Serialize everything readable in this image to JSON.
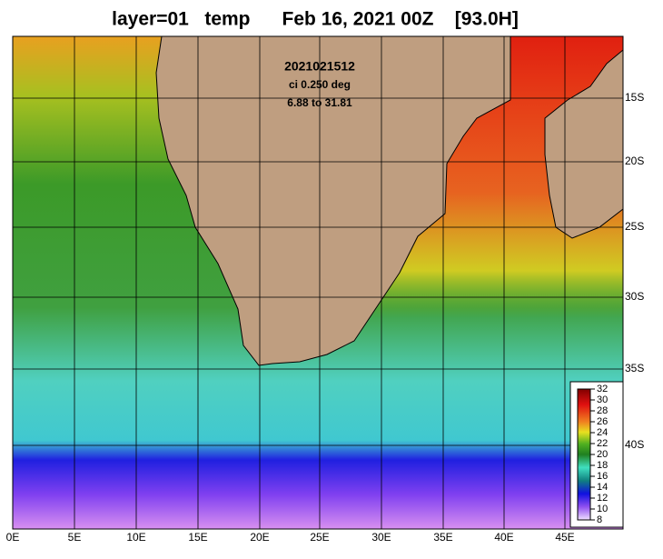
{
  "title": "layer=01   temp      Feb 16, 2021 00Z    [93.0H]",
  "annotation": {
    "date": "2021021512",
    "interval": "ci 0.250 deg",
    "range": "6.88 to 31.81"
  },
  "lon_labels": [
    "0E",
    "5E",
    "10E",
    "15E",
    "20E",
    "25E",
    "30E",
    "35E",
    "40E",
    "45E"
  ],
  "lat_labels": [
    "15S",
    "20S",
    "25S",
    "30S",
    "35S",
    "40S"
  ],
  "colorbar": {
    "ticks": [
      32,
      30,
      28,
      26,
      24,
      22,
      20,
      18,
      16,
      14,
      12,
      10,
      8
    ]
  }
}
